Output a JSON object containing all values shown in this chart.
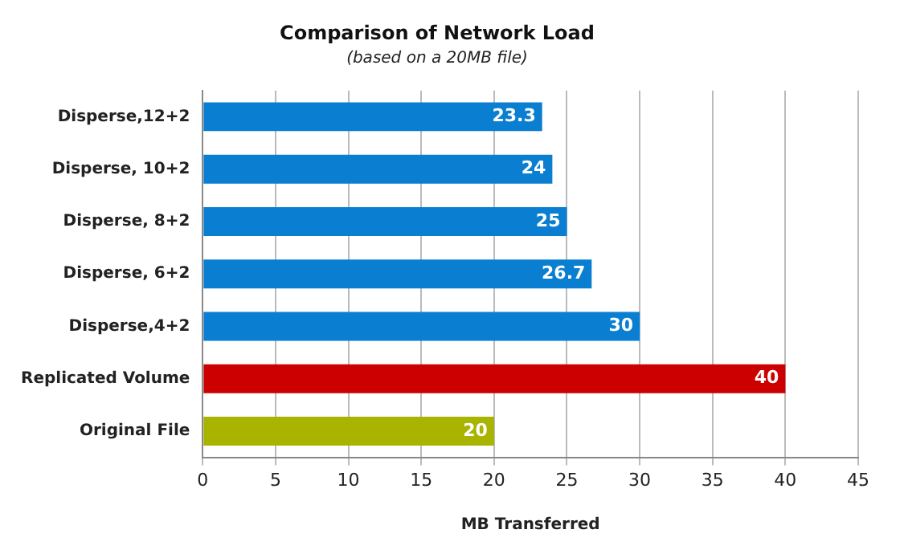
{
  "chart_data": {
    "type": "bar",
    "orientation": "horizontal",
    "title": "Comparison of Network Load",
    "subtitle": "(based on a 20MB file)",
    "xlabel": "MB Transferred",
    "categories": [
      "Disperse,12+2",
      "Disperse, 10+2",
      "Disperse, 8+2",
      "Disperse, 6+2",
      "Disperse,4+2",
      "Replicated Volume",
      "Original File"
    ],
    "values": [
      23.3,
      24,
      25,
      26.7,
      30,
      40,
      20
    ],
    "colors": [
      "#0a7fd2",
      "#0a7fd2",
      "#0a7fd2",
      "#0a7fd2",
      "#0a7fd2",
      "#cc0000",
      "#a8b400"
    ],
    "xlim": [
      0,
      45
    ],
    "xticks": [
      0,
      5,
      10,
      15,
      20,
      25,
      30,
      35,
      40,
      45
    ],
    "grid": "x",
    "data_labels": true,
    "legend": false
  }
}
